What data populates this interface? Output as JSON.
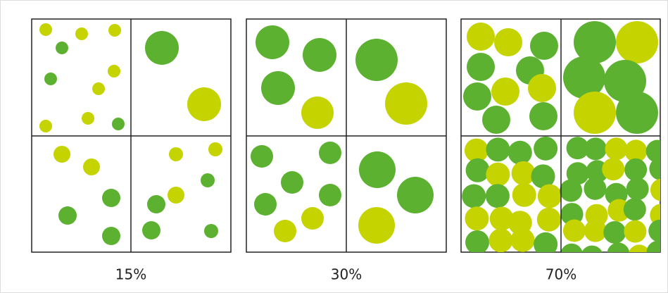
{
  "panels": [
    {
      "label": "15%"
    },
    {
      "label": "30%"
    },
    {
      "label": "70%"
    }
  ]
}
